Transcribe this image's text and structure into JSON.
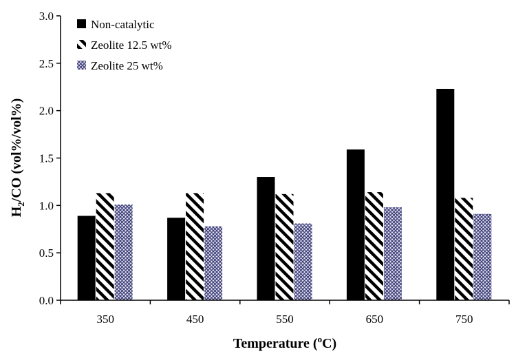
{
  "chart_data": {
    "type": "bar",
    "categories": [
      "350",
      "450",
      "550",
      "650",
      "750"
    ],
    "series": [
      {
        "name": "Non-catalytic",
        "values": [
          0.89,
          0.87,
          1.3,
          1.59,
          2.23
        ],
        "fill": "solid",
        "color": "#000000"
      },
      {
        "name": "Zeolite 12.5 wt%",
        "values": [
          1.13,
          1.13,
          1.12,
          1.14,
          1.08
        ],
        "fill": "diagonal-stripes",
        "color": "#000000"
      },
      {
        "name": "Zeolite 25 wt%",
        "values": [
          1.01,
          0.78,
          0.81,
          0.98,
          0.91
        ],
        "fill": "crosshatch",
        "color": "#3c3c78"
      }
    ],
    "xlabel": "Temperature (oC)",
    "xlabel_main": "Temperature (",
    "xlabel_sup": "o",
    "xlabel_end": "C)",
    "ylabel": "H2/CO (vol%/vol%)",
    "ylabel_main": "H",
    "ylabel_sub": "2",
    "ylabel_end": "/CO (vol%/vol%)",
    "ylim": [
      0,
      3.0
    ],
    "yticks": [
      "0.0",
      "0.5",
      "1.0",
      "1.5",
      "2.0",
      "2.5",
      "3.0"
    ],
    "legend_position": "top-left",
    "grid": false
  }
}
